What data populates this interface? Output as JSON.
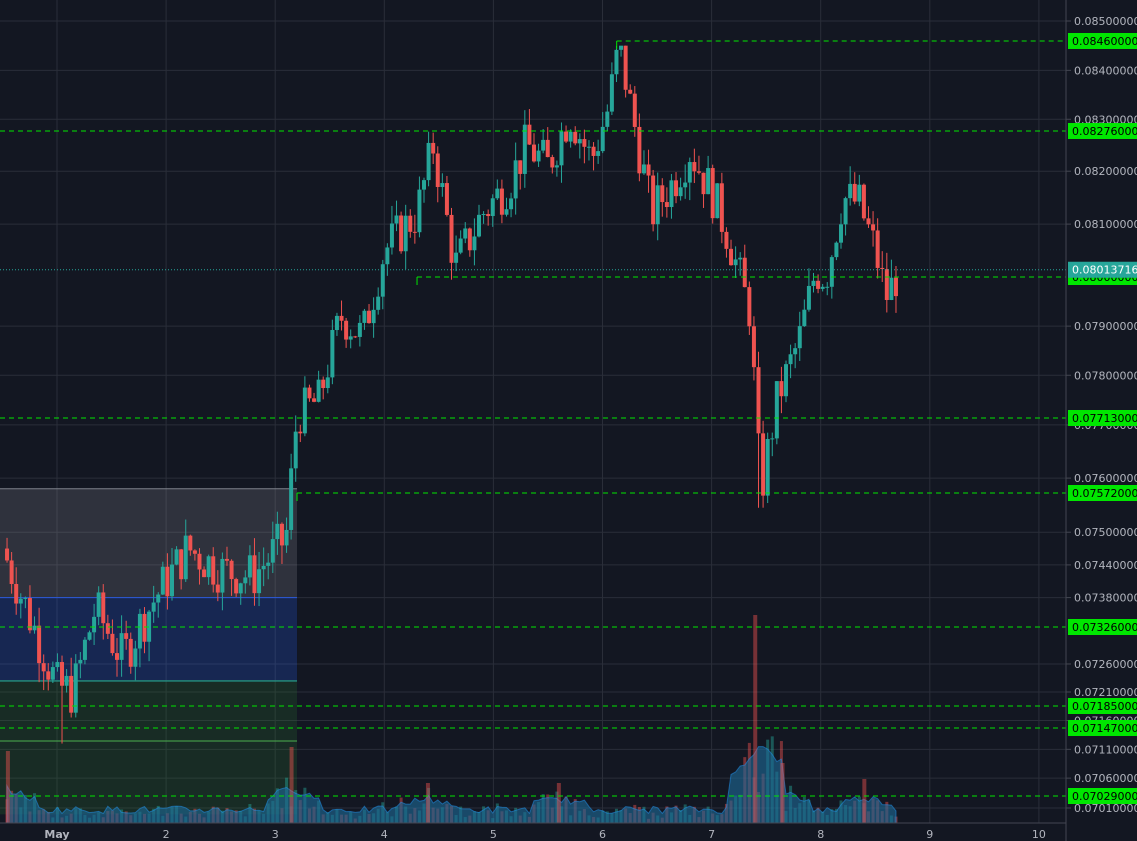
{
  "chart_data": {
    "type": "candlestick",
    "title": "",
    "xlabel": "",
    "ylabel": "",
    "x_ticks": [
      "May",
      "2",
      "3",
      "4",
      "5",
      "6",
      "7",
      "8",
      "9",
      "10"
    ],
    "y_ticks": [
      "0.08500000",
      "0.08400000",
      "0.08300000",
      "0.08200000",
      "0.08100000",
      "0.07900000",
      "0.07800000",
      "0.07700000",
      "0.07600000",
      "0.07500000",
      "0.07440000",
      "0.07380000",
      "0.07260000",
      "0.07210000",
      "0.07160000",
      "0.07110000",
      "0.07060000",
      "0.07010000"
    ],
    "y_tick_values": [
      0.085,
      0.084,
      0.083,
      0.082,
      0.081,
      0.079,
      0.078,
      0.077,
      0.076,
      0.075,
      0.0744,
      0.0738,
      0.0726,
      0.0721,
      0.0716,
      0.0711,
      0.0706,
      0.0701
    ],
    "level_lines": [
      {
        "label": "0.08460000",
        "value": 0.0846,
        "start_day": 6.13
      },
      {
        "label": "0.08276000",
        "value": 0.08276,
        "start_day": 0.0
      },
      {
        "label": "0.08000000",
        "value": 0.08,
        "start_day": 4.3
      },
      {
        "label": "0.07713000",
        "value": 0.07713,
        "start_day": 0.0
      },
      {
        "label": "0.07572000",
        "value": 0.07572,
        "start_day": 3.2
      },
      {
        "label": "0.07326000",
        "value": 0.07326,
        "start_day": 0.0
      },
      {
        "label": "0.07185000",
        "value": 0.07185,
        "start_day": 0.0
      },
      {
        "label": "0.07147000",
        "value": 0.07147,
        "start_day": 0.0
      },
      {
        "label": "0.07029000",
        "value": 0.07029,
        "start_day": 0.0
      }
    ],
    "current_price": {
      "label": "0.08013716",
      "value": 0.08013716
    },
    "zones": [
      {
        "from_day": 0.5,
        "to_day": 3.2,
        "top": 0.0758,
        "bottom": 0.0738,
        "color": "#9598a1"
      },
      {
        "from_day": 0.5,
        "to_day": 3.2,
        "top": 0.0738,
        "bottom": 0.0723,
        "color": "#2962ff"
      },
      {
        "from_day": 0.5,
        "to_day": 3.2,
        "top": 0.0723,
        "bottom": 0.07,
        "color": "#2e7d32"
      }
    ],
    "series": [
      {
        "day": 0.5,
        "close": 0.0747
      },
      {
        "day": 1.0,
        "close": 0.0722
      },
      {
        "day": 1.15,
        "close": 0.0721
      },
      {
        "day": 1.35,
        "close": 0.0736
      },
      {
        "day": 1.6,
        "close": 0.0727
      },
      {
        "day": 1.9,
        "close": 0.0738
      },
      {
        "day": 2.2,
        "close": 0.0747
      },
      {
        "day": 2.5,
        "close": 0.0743
      },
      {
        "day": 2.8,
        "close": 0.0742
      },
      {
        "day": 3.1,
        "close": 0.0749
      },
      {
        "day": 3.2,
        "close": 0.0772
      },
      {
        "day": 3.4,
        "close": 0.0775
      },
      {
        "day": 3.6,
        "close": 0.0792
      },
      {
        "day": 3.8,
        "close": 0.0788
      },
      {
        "day": 4.0,
        "close": 0.0805
      },
      {
        "day": 4.3,
        "close": 0.0812
      },
      {
        "day": 4.45,
        "close": 0.0825
      },
      {
        "day": 4.65,
        "close": 0.0802
      },
      {
        "day": 4.9,
        "close": 0.0812
      },
      {
        "day": 5.15,
        "close": 0.0818
      },
      {
        "day": 5.3,
        "close": 0.0825
      },
      {
        "day": 5.5,
        "close": 0.0821
      },
      {
        "day": 5.7,
        "close": 0.0831
      },
      {
        "day": 5.9,
        "close": 0.0822
      },
      {
        "day": 6.05,
        "close": 0.0832
      },
      {
        "day": 6.15,
        "close": 0.0845
      },
      {
        "day": 6.3,
        "close": 0.0828
      },
      {
        "day": 6.45,
        "close": 0.0812
      },
      {
        "day": 6.65,
        "close": 0.0818
      },
      {
        "day": 6.8,
        "close": 0.0824
      },
      {
        "day": 7.0,
        "close": 0.0816
      },
      {
        "day": 7.15,
        "close": 0.0808
      },
      {
        "day": 7.35,
        "close": 0.0793
      },
      {
        "day": 7.45,
        "close": 0.0757
      },
      {
        "day": 7.6,
        "close": 0.0775
      },
      {
        "day": 7.8,
        "close": 0.0787
      },
      {
        "day": 7.95,
        "close": 0.0801
      },
      {
        "day": 8.05,
        "close": 0.08
      },
      {
        "day": 8.2,
        "close": 0.0815
      },
      {
        "day": 8.35,
        "close": 0.0814
      },
      {
        "day": 8.5,
        "close": 0.0805
      },
      {
        "day": 8.6,
        "close": 0.0796
      },
      {
        "day": 8.72,
        "close": 0.0801
      }
    ],
    "volume_spikes": [
      {
        "day": 0.55,
        "volume": 0.9
      },
      {
        "day": 3.15,
        "volume": 0.95
      },
      {
        "day": 7.4,
        "volume": 2.6
      },
      {
        "day": 7.65,
        "volume": 0.75
      },
      {
        "day": 8.4,
        "volume": 0.55
      },
      {
        "day": 5.6,
        "volume": 0.5
      },
      {
        "day": 4.4,
        "volume": 0.5
      }
    ],
    "colors": {
      "background": "#131722",
      "grid": "#2a2e39",
      "up": "#26a69a",
      "down": "#ef5350",
      "level": "#00e600",
      "level_label_bg": "#00e600",
      "current_label_bg": "#26a69a",
      "axis_text": "#b2b5be",
      "volume_area": "#1e6a9a"
    },
    "grid": true
  }
}
